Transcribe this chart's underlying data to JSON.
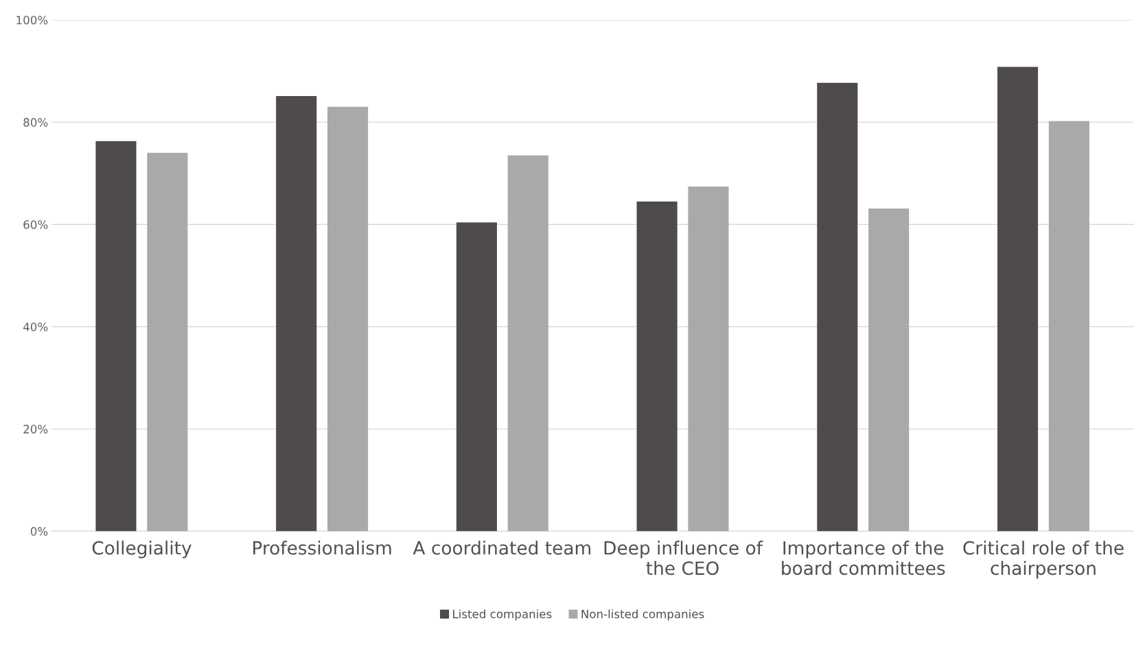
{
  "chart_data": {
    "type": "bar",
    "categories": [
      "Collegiality",
      "Professionalism",
      "A coordinated team",
      "Deep influence of\nthe CEO",
      "Importance of the\nboard committees",
      "Critical role of the\nchairperson"
    ],
    "series": [
      {
        "name": "Listed companies",
        "color": "#4f4b4b",
        "values": [
          76.3,
          85.1,
          60.4,
          64.5,
          87.7,
          90.8
        ]
      },
      {
        "name": "Non-listed companies",
        "color": "#a9a9a9",
        "values": [
          74.0,
          83.0,
          73.5,
          67.4,
          63.1,
          80.2
        ]
      }
    ],
    "ylim": [
      0,
      100
    ],
    "yticks": [
      {
        "value": 0,
        "label": "0%"
      },
      {
        "value": 20,
        "label": "20%"
      },
      {
        "value": 40,
        "label": "40%"
      },
      {
        "value": 60,
        "label": "60%"
      },
      {
        "value": 80,
        "label": "80%"
      },
      {
        "value": 100,
        "label": "100%"
      }
    ],
    "grid": "y",
    "legend": "bottom"
  }
}
